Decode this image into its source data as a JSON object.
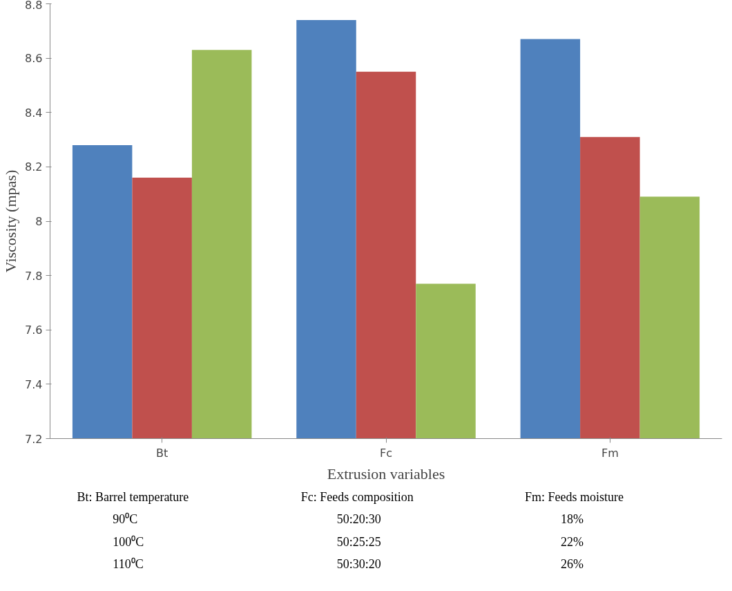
{
  "chart_data": {
    "type": "bar",
    "xlabel": "Extrusion variables",
    "ylabel": "Viscosity (mpas)",
    "categories": [
      "Bt",
      "Fc",
      "Fm"
    ],
    "series": [
      {
        "color": "#4f81bd",
        "values": [
          8.28,
          8.74,
          8.67
        ]
      },
      {
        "color": "#c0504d",
        "values": [
          8.16,
          8.55,
          8.31
        ]
      },
      {
        "color": "#9bbb59",
        "values": [
          8.63,
          7.77,
          8.09
        ]
      }
    ],
    "ylim": [
      7.2,
      8.8
    ],
    "yticks": [
      7.2,
      7.4,
      7.6,
      7.8,
      8,
      8.2,
      8.4,
      8.6,
      8.8
    ],
    "grid": false,
    "annotations": [
      "Bt: Barrel temperature",
      "90⁰C",
      "100⁰C",
      "110⁰C",
      "Fc: Feeds composition",
      "50:20:30",
      "50:25:25",
      "50:30:20",
      "Fm: Feeds moisture",
      "18%",
      "22%",
      "26%"
    ]
  }
}
